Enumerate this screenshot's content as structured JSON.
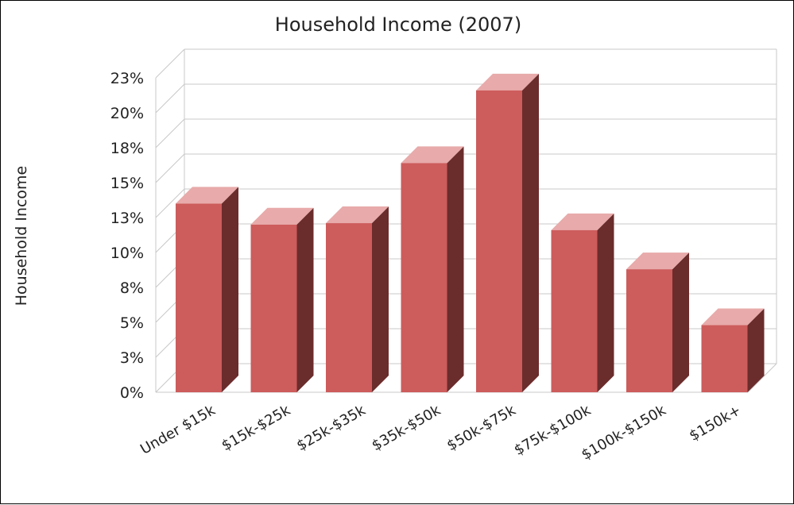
{
  "chart_data": {
    "type": "bar",
    "title": "Household Income (2007)",
    "ylabel": "Household Income",
    "xlabel": "",
    "categories": [
      "Under $15k",
      "$15k-$25k",
      "$25k-$35k",
      "$35k-$50k",
      "$50k-$75k",
      "$75k-$100k",
      "$100k-$150k",
      "$150k+"
    ],
    "values": [
      13.5,
      12.0,
      12.1,
      16.4,
      21.6,
      11.6,
      8.8,
      4.8
    ],
    "y_tick_labels": [
      "0%",
      "3%",
      "5%",
      "8%",
      "10%",
      "13%",
      "15%",
      "18%",
      "20%",
      "23%"
    ],
    "ylim": [
      0,
      22.5
    ],
    "grid": true,
    "style": "3d",
    "colors": {
      "front": "#cd5c5c",
      "top": "#e8aaaa",
      "side": "#6b2c2c",
      "grid": "#c8c8c8"
    }
  }
}
